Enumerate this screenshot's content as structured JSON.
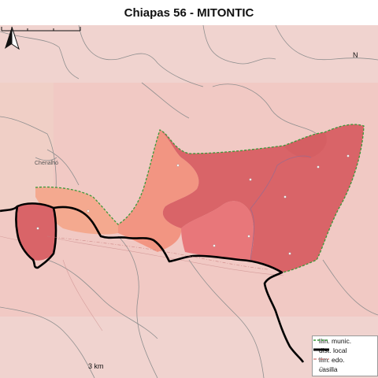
{
  "title": "Chiapas 56 - MITONTIC",
  "map": {
    "place_labels": [
      "Chenalhó"
    ],
    "north_letter": "N",
    "scale_label": "3 km"
  },
  "legend": {
    "items": [
      {
        "label": "lím. munic.",
        "symbol": "dashed-green-line"
      },
      {
        "label": "dist. local",
        "symbol": "thick-black-line"
      },
      {
        "label": "lím. edo.",
        "symbol": "dash-dot-red-line"
      },
      {
        "label": "casilla",
        "symbol": "circle-marker"
      }
    ]
  },
  "colors": {
    "background": "#f1c9c4",
    "light_band": "#f0d4d0",
    "section_dark": "#d96468",
    "section_mid": "#e8777a",
    "section_light": "#f29582",
    "section_pale": "#f4a98f",
    "district_line": "#000000",
    "municipal_line": "#3a9a3a"
  }
}
